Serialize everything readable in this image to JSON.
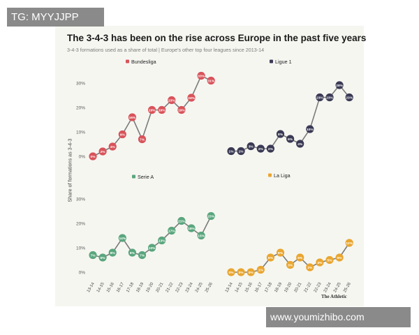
{
  "watermarks": {
    "top_left": "TG: MYYJJPP",
    "bottom_right": "www.youmizhibo.com"
  },
  "chart_data": {
    "type": "line",
    "title": "The 3-4-3 has been on the rise across Europe in the past five years",
    "subtitle": "3-4-3 formations used as a share of total | Europe's other top four leagues since 2013-14",
    "ylabel": "Share of formations as 3-4-3",
    "credit": "The Athletic",
    "ylim": [
      0,
      35
    ],
    "yticks": [
      "0%",
      "10%",
      "20%",
      "30%"
    ],
    "categories": [
      "13-14",
      "14-15",
      "15-16",
      "16-17",
      "17-18",
      "18-19",
      "19-20",
      "20-21",
      "21-22",
      "22-23",
      "23-24",
      "24-25",
      "25-26"
    ],
    "series": [
      {
        "name": "Bundesliga",
        "color": "#d9535a",
        "panel": 0,
        "values": [
          0,
          2,
          4,
          9,
          16,
          7,
          19,
          19,
          23,
          19,
          24,
          33,
          31
        ],
        "labels": [
          "0%",
          "2%",
          "4%",
          "9%",
          "16%",
          "7%",
          "19%",
          "19%",
          "23%",
          "19%",
          "24%",
          "33%",
          "31%"
        ]
      },
      {
        "name": "Ligue 1",
        "color": "#3a3a55",
        "panel": 1,
        "values": [
          1,
          1,
          3,
          2,
          2,
          8,
          6,
          4,
          10,
          23,
          23,
          28,
          23
        ],
        "labels": [
          "1%",
          "1%",
          "3%",
          "2%",
          "2%",
          "8%",
          "6%",
          "4%",
          "10%",
          "23%",
          "23%",
          "28%",
          "23%"
        ]
      },
      {
        "name": "Serie A",
        "color": "#5aa67d",
        "panel": 2,
        "values": [
          7,
          6,
          8,
          14,
          8,
          7,
          10,
          13,
          17,
          21,
          18,
          15,
          23
        ],
        "labels": [
          "7%",
          "6%",
          "8%",
          "14%",
          "8%",
          "7%",
          "10%",
          "13%",
          "17%",
          "21%",
          "18%",
          "15%",
          "23%"
        ]
      },
      {
        "name": "La Liga",
        "color": "#e9a630",
        "panel": 3,
        "values": [
          0,
          0,
          0,
          1,
          6,
          8,
          3,
          6,
          2,
          4,
          5,
          6,
          12
        ],
        "labels": [
          "0%",
          "0%",
          "0%",
          "1%",
          "6%",
          "8%",
          "3%",
          "6%",
          "2%",
          "4%",
          "5%",
          "6%",
          "12%"
        ]
      }
    ]
  }
}
